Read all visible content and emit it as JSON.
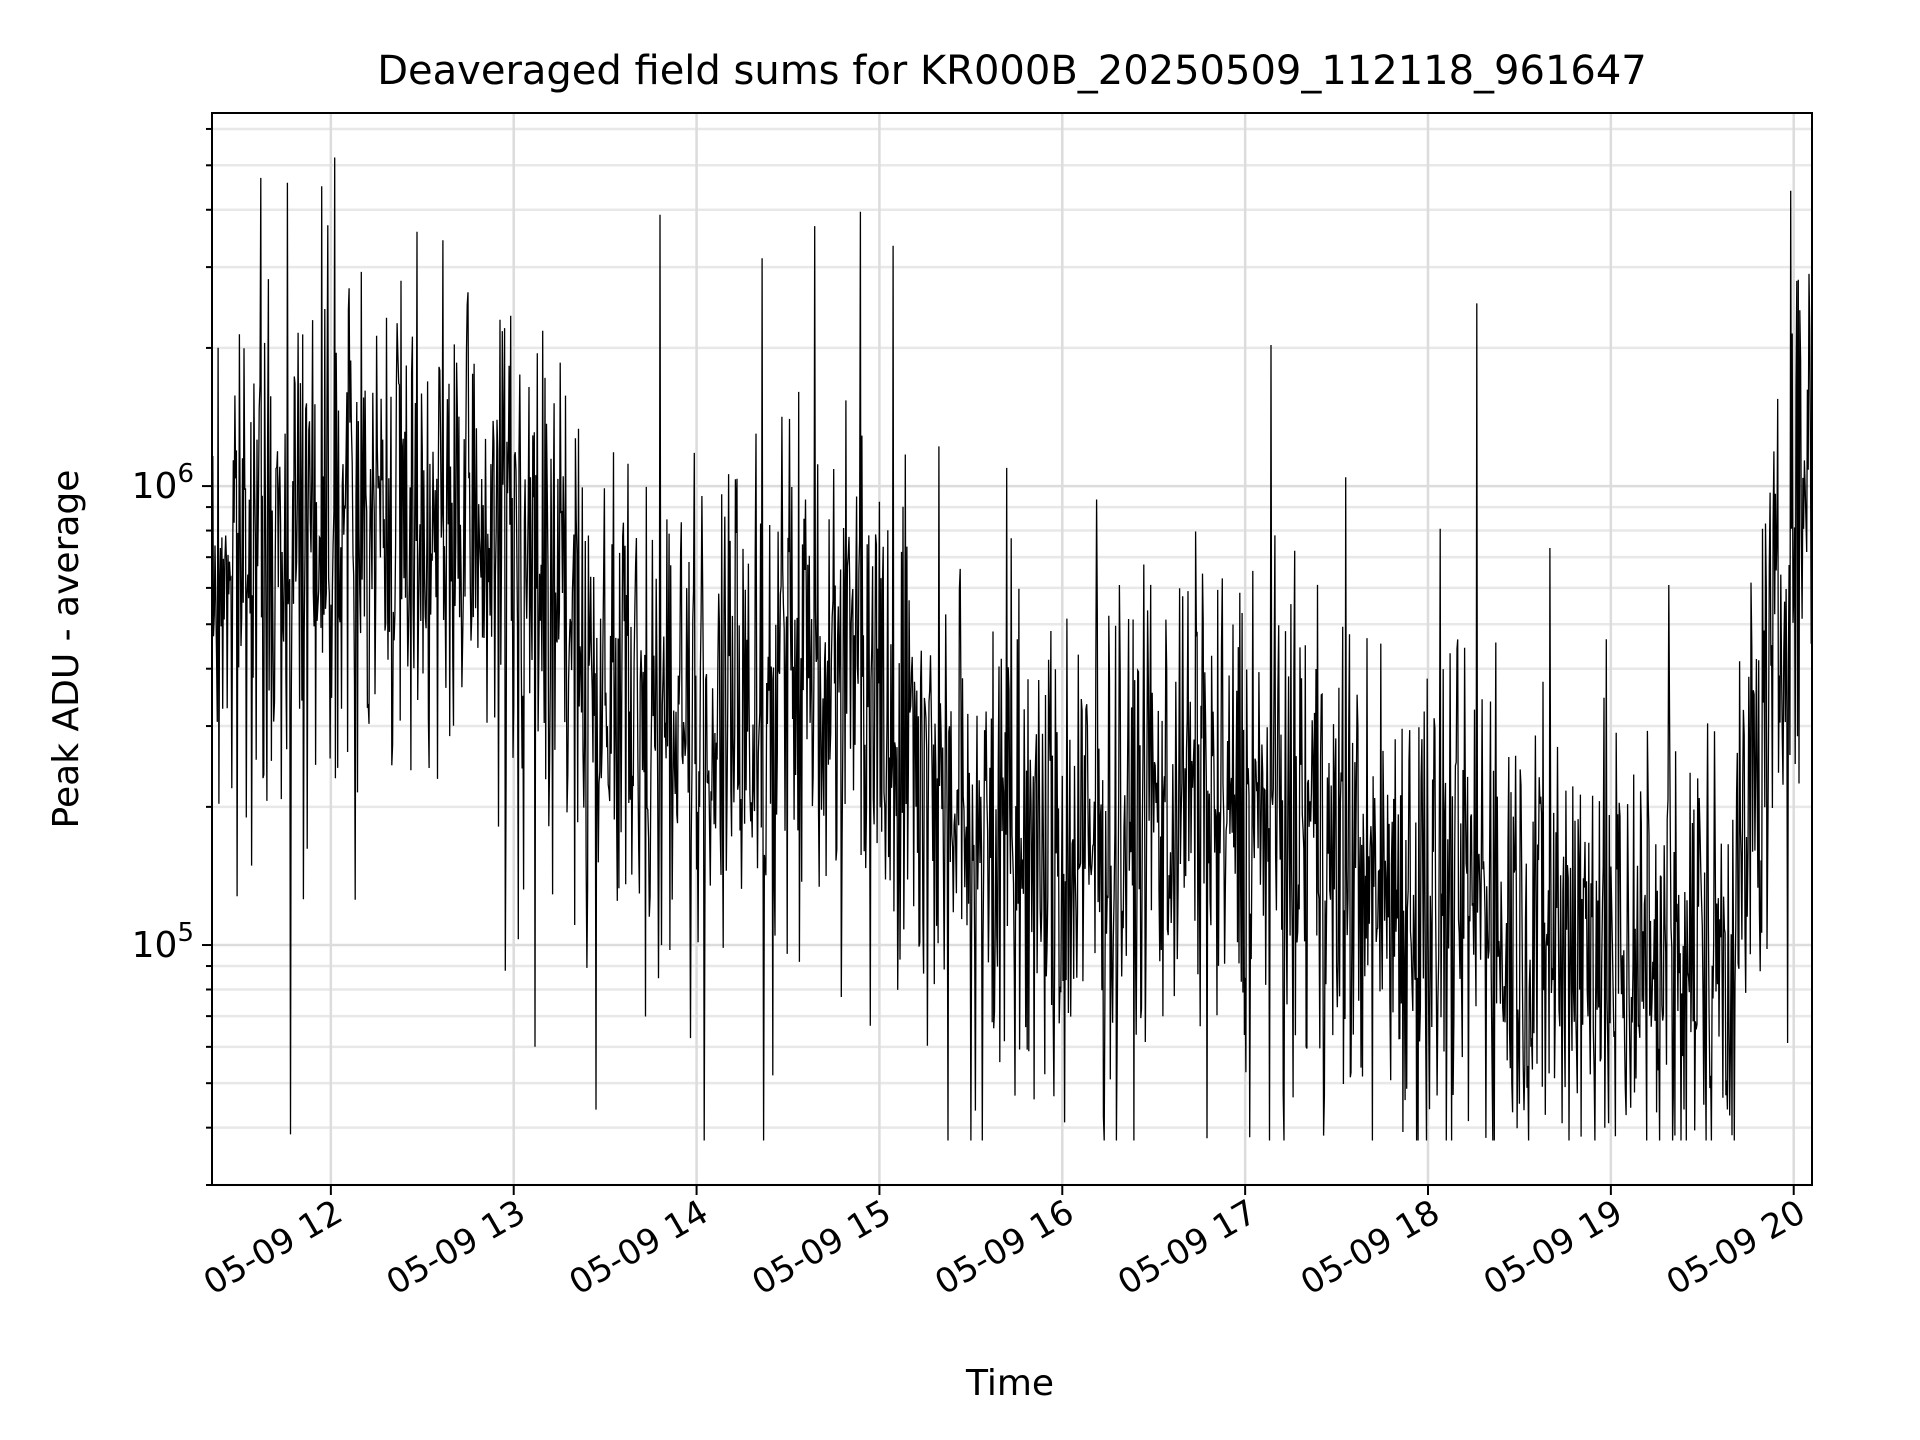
{
  "chart_data": {
    "type": "line",
    "title": "Deaveraged field sums for KR000B_20250509_112118_961647",
    "xlabel": "Time",
    "ylabel": "Peak ADU - average",
    "yscale": "log",
    "grid": true,
    "line_color": "#000000",
    "x_ticks": [
      "05-09 12",
      "05-09 13",
      "05-09 14",
      "05-09 15",
      "05-09 16",
      "05-09 17",
      "05-09 18",
      "05-09 19",
      "05-09 20"
    ],
    "y_ticks": [
      {
        "base": "10",
        "exp": "5",
        "value": 100000
      },
      {
        "base": "10",
        "exp": "6",
        "value": 1000000
      }
    ],
    "xlim": [
      "05-09 11:21",
      "05-09 20:06"
    ],
    "ylim": [
      30000,
      6500000
    ],
    "series": [
      {
        "x": [
          "05-09 11:21",
          "05-09 11:30",
          "05-09 11:40",
          "05-09 11:50",
          "05-09 12:00",
          "05-09 12:10",
          "05-09 12:20",
          "05-09 12:30",
          "05-09 12:40",
          "05-09 12:50",
          "05-09 13:00",
          "05-09 13:10",
          "05-09 13:20",
          "05-09 13:30",
          "05-09 13:40",
          "05-09 13:50",
          "05-09 14:00",
          "05-09 14:10",
          "05-09 14:20",
          "05-09 14:30",
          "05-09 14:40",
          "05-09 14:50",
          "05-09 15:00",
          "05-09 15:10",
          "05-09 15:20",
          "05-09 15:30",
          "05-09 15:40",
          "05-09 15:50",
          "05-09 16:00",
          "05-09 16:10",
          "05-09 16:20",
          "05-09 16:30",
          "05-09 16:40",
          "05-09 16:50",
          "05-09 17:00",
          "05-09 17:10",
          "05-09 17:20",
          "05-09 17:30",
          "05-09 17:40",
          "05-09 17:50",
          "05-09 18:00",
          "05-09 18:10",
          "05-09 18:20",
          "05-09 18:30",
          "05-09 18:40",
          "05-09 18:50",
          "05-09 19:00",
          "05-09 19:10",
          "05-09 19:20",
          "05-09 19:30",
          "05-09 19:40",
          "05-09 19:50",
          "05-09 20:00",
          "05-09 20:06"
        ],
        "y": [
          600000,
          700000,
          650000,
          800000,
          850000,
          900000,
          850000,
          800000,
          750000,
          800000,
          750000,
          600000,
          450000,
          350000,
          300000,
          320000,
          280000,
          300000,
          320000,
          380000,
          420000,
          450000,
          380000,
          300000,
          220000,
          180000,
          160000,
          150000,
          140000,
          150000,
          170000,
          200000,
          220000,
          210000,
          190000,
          180000,
          170000,
          150000,
          140000,
          135000,
          130000,
          125000,
          120000,
          115000,
          110000,
          105000,
          100000,
          95000,
          95000,
          100000,
          110000,
          300000,
          700000,
          1200000
        ],
        "spikes_high": [
          [
            "05-09 11:57",
            4500000
          ],
          [
            "05-09 11:59",
            3700000
          ],
          [
            "05-09 11:54",
            2300000
          ],
          [
            "05-09 13:48",
            3900000
          ],
          [
            "05-09 18:16",
            2500000
          ],
          [
            "05-09 19:59",
            4400000
          ],
          [
            "05-09 20:01",
            2800000
          ],
          [
            "05-09 20:05",
            2900000
          ]
        ],
        "spikes_low": [
          [
            "05-09 13:07",
            60000
          ],
          [
            "05-09 14:25",
            52000
          ],
          [
            "05-09 18:03",
            47000
          ],
          [
            "05-09 18:58",
            40000
          ],
          [
            "05-09 19:23",
            37000
          ]
        ],
        "noise_decades": 0.75
      }
    ]
  }
}
